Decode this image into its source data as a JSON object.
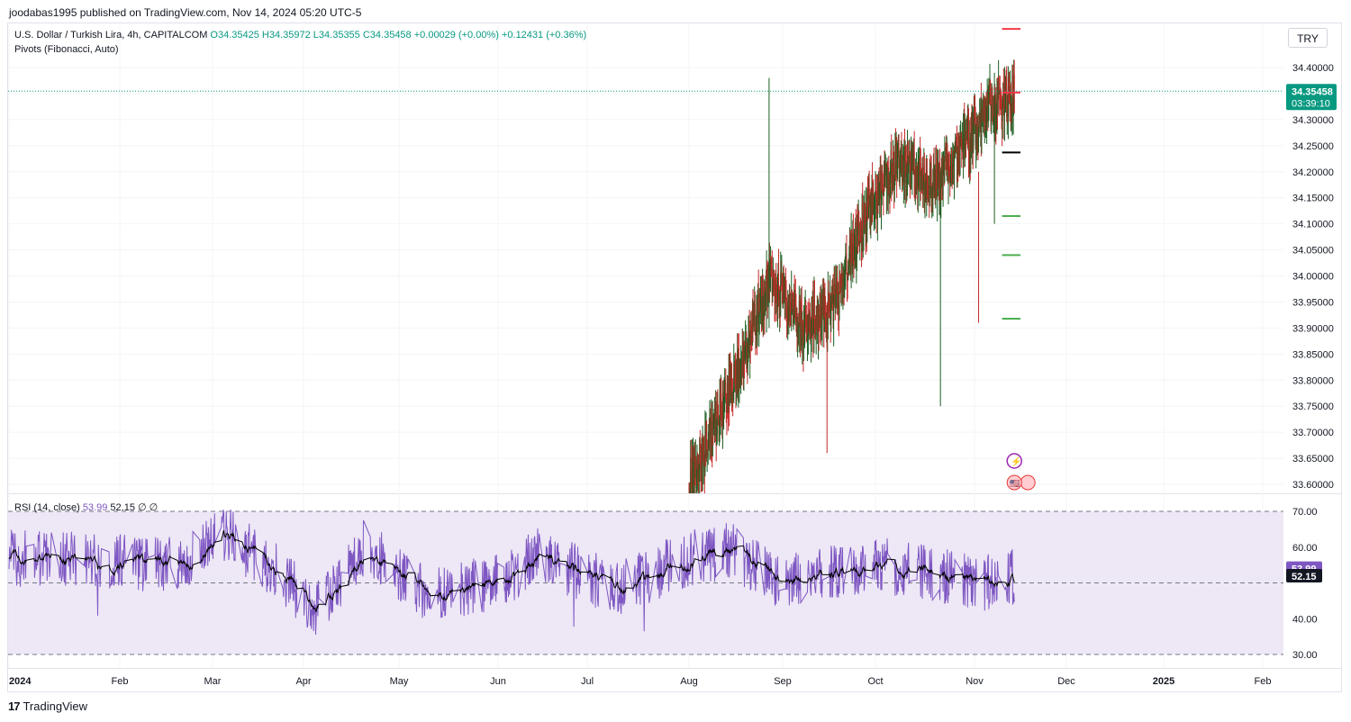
{
  "publisher_line": "joodabas1995 published on TradingView.com, Nov 14, 2024 05:20 UTC-5",
  "header": {
    "symbol": "U.S. Dollar / Turkish Lira, 4h, CAPITALCOM",
    "ohlc": "O34.35425  H34.35972  L34.35355  C34.35458  +0.00029 (+0.00%)  +0.12431 (+0.36%)",
    "indicator": "Pivots (Fibonacci, Auto)"
  },
  "currency_button": "TRY",
  "rsi_header": {
    "name": "RSI (14, close)",
    "value": "53.99",
    "ma": "52.15",
    "extra": "∅  ∅"
  },
  "footer": {
    "brand": "TradingView",
    "logo": "17"
  },
  "colors": {
    "up": "#089981",
    "down": "#f23645",
    "candle_up": "#1b5e20",
    "candle_down": "#c62828",
    "rsi_line": "#7e57c2",
    "rsi_ma": "#000000",
    "rsi_band": "#ede7f6",
    "price_badge": "#089981",
    "pivot_resistance": "#f23645",
    "pivot_support": "#4caf50",
    "pivot_p": "#000000"
  },
  "chart_data": [
    {
      "type": "candlestick",
      "title": "U.S. Dollar / Turkish Lira, 4h, CAPITALCOM",
      "y_ticks": [
        "34.40000",
        "34.35000",
        "34.30000",
        "34.25000",
        "34.20000",
        "34.15000",
        "34.10000",
        "34.05000",
        "34.00000",
        "33.95000",
        "33.90000",
        "33.85000",
        "33.80000",
        "33.75000",
        "33.70000",
        "33.65000",
        "33.60000"
      ],
      "ylim": [
        33.59,
        34.46
      ],
      "x_ticks": [
        "2024",
        "Feb",
        "Mar",
        "Apr",
        "May",
        "Jun",
        "Jul",
        "Aug",
        "Sep",
        "Oct",
        "Nov",
        "Dec",
        "2025",
        "Feb"
      ],
      "last_price": "34.35458",
      "countdown": "03:39:10",
      "last_value": 34.35458,
      "pivots": [
        {
          "level": "R3",
          "value": 34.474
        },
        {
          "level": "R2",
          "value": 34.352
        },
        {
          "level": "P",
          "value": 34.237
        },
        {
          "level": "S1",
          "value": 34.115
        },
        {
          "level": "S2",
          "value": 34.04
        },
        {
          "level": "S3",
          "value": 33.918
        }
      ],
      "trend": [
        {
          "date": "2024-08-01",
          "value": 33.6
        },
        {
          "date": "2024-08-09",
          "value": 33.7
        },
        {
          "date": "2024-08-19",
          "value": 33.85
        },
        {
          "date": "2024-08-28",
          "value": 34.0
        },
        {
          "date": "2024-09-08",
          "value": 33.9
        },
        {
          "date": "2024-09-18",
          "value": 33.95
        },
        {
          "date": "2024-09-28",
          "value": 34.12
        },
        {
          "date": "2024-10-08",
          "value": 34.22
        },
        {
          "date": "2024-10-20",
          "value": 34.18
        },
        {
          "date": "2024-10-30",
          "value": 34.26
        },
        {
          "date": "2024-11-06",
          "value": 34.33
        },
        {
          "date": "2024-11-14",
          "value": 34.35
        }
      ],
      "series": []
    },
    {
      "type": "line",
      "title": "RSI (14, close)",
      "y_ticks": [
        "70.00",
        "60.00",
        "40.00",
        "30.00"
      ],
      "ylim": [
        25,
        72
      ],
      "bands": [
        30,
        50,
        70
      ],
      "last_value": 53.99,
      "last_ma": 52.15,
      "rsi_label": "53.99",
      "ma_label": "52.15"
    }
  ]
}
